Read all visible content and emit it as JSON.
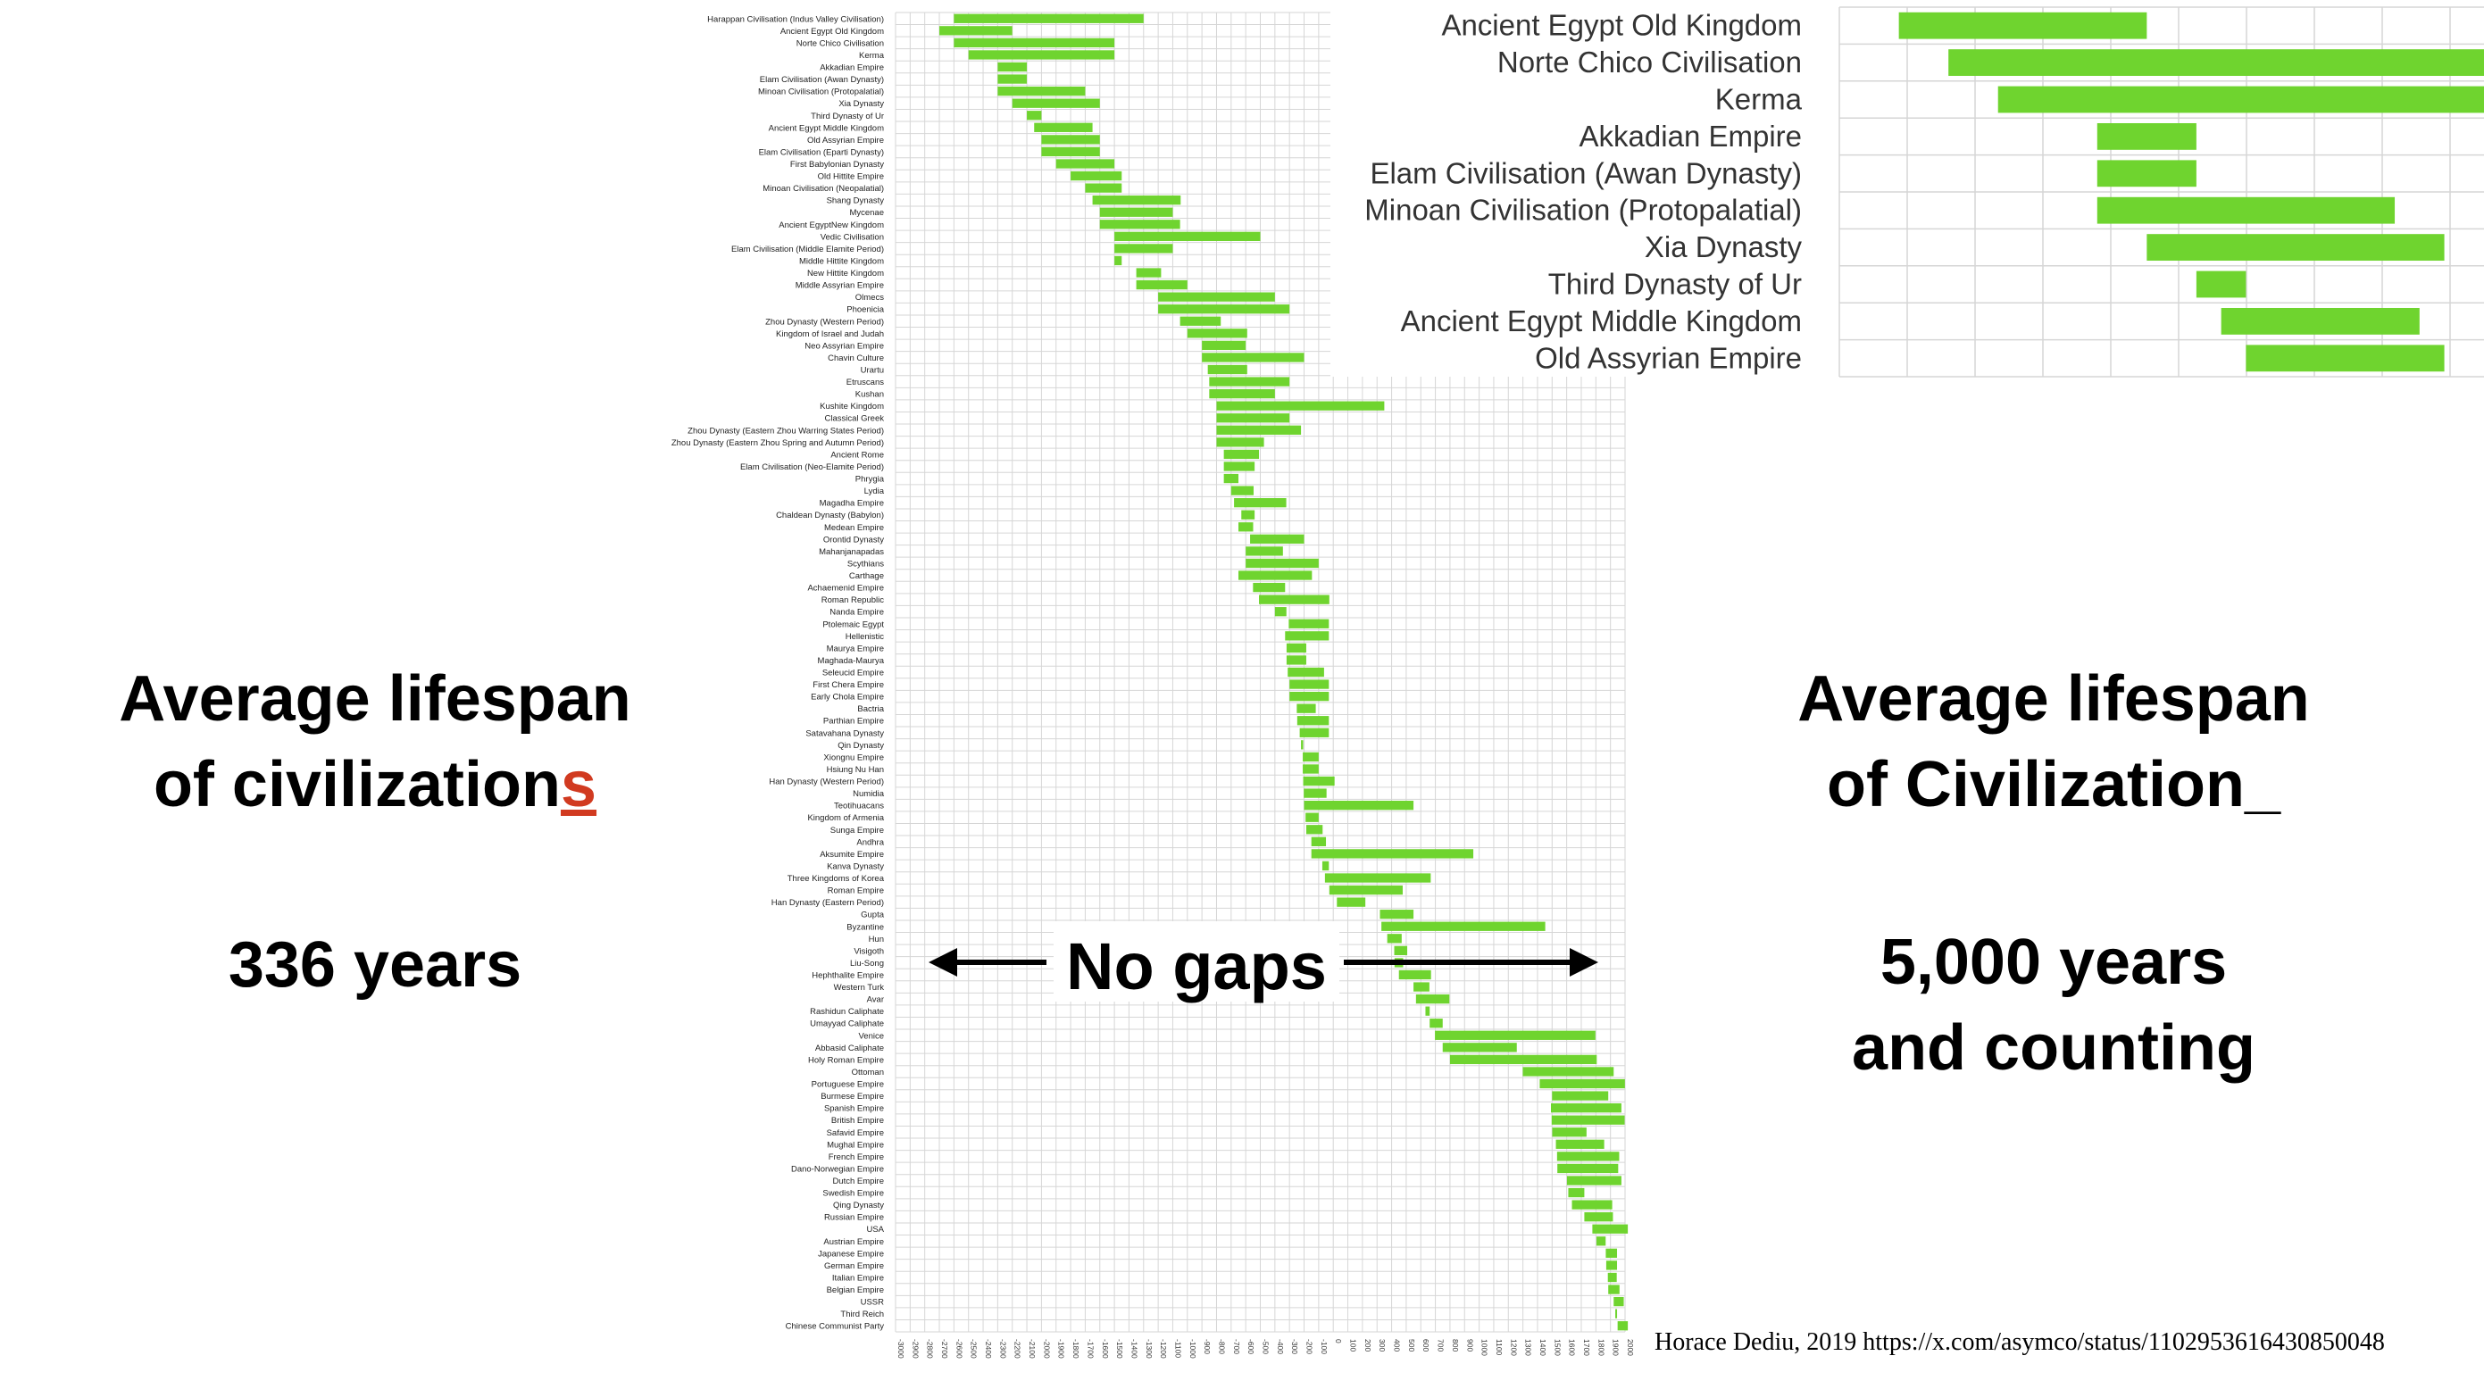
{
  "left_panel": {
    "heading_line1": "Average lifespan",
    "heading_line2_prefix": "of civilization",
    "heading_line2_emphasis": "s",
    "value": "336 years"
  },
  "right_panel": {
    "heading_line1": "Average lifespan",
    "heading_line2": "of Civilization_",
    "value_line1": "5,000 years",
    "value_line2": "and counting"
  },
  "center_label": "No gaps",
  "credit": "Horace Dediu, 2019 https://x.com/asymco/status/1102953616430850048",
  "colors": {
    "bar": "#6fd42f",
    "grid": "#d6d6d6",
    "emphasis": "#d13a20"
  },
  "chart_data": [
    {
      "type": "bar",
      "orientation": "horizontal-range",
      "xlim": [
        -3000,
        2000
      ],
      "x_tick_labels": [
        "-3000",
        "-2900",
        "-2800",
        "-2700",
        "-2600",
        "-2500",
        "-2400",
        "-2300",
        "-2200",
        "-2100",
        "-2000",
        "-1900",
        "-1800",
        "-1700",
        "-1600",
        "-1500",
        "-1400",
        "-1300",
        "-1200",
        "-1100",
        "-1000",
        "-900",
        "-800",
        "-700",
        "-600",
        "-500",
        "-400",
        "-300",
        "-200",
        "-100",
        "0",
        "100",
        "200",
        "300",
        "400",
        "500",
        "600",
        "700",
        "800",
        "900",
        "1000",
        "1100",
        "1200",
        "1300",
        "1400",
        "1500",
        "1600",
        "1700",
        "1800",
        "1900",
        "2000"
      ],
      "grid": true,
      "categories": [
        "Harappan Civilisation (Indus Valley Civilisation)",
        "Ancient Egypt Old Kingdom",
        "Norte Chico Civilisation",
        "Kerma",
        "Akkadian Empire",
        "Elam Civilisation (Awan Dynasty)",
        "Minoan Civilisation (Protopalatial)",
        "Xia Dynasty",
        "Third Dynasty of Ur",
        "Ancient Egypt Middle Kingdom",
        "Old Assyrian Empire",
        "Elam Civilisation (Eparti Dynasty)",
        "First Babylonian Dynasty",
        "Old Hittite Empire",
        "Minoan Civilisation (Neopalatial)",
        "Shang Dynasty",
        "Mycenae",
        "Ancient EgyptNew Kingdom",
        "Vedic Civilisation",
        "Elam Civilisation (Middle Elamite Period)",
        "Middle Hittite Kingdom",
        "New Hittite Kingdom",
        "Middle Assyrian Empire",
        "Olmecs",
        "Phoenicia",
        "Zhou Dynasty (Western Period)",
        "Kingdom of Israel and Judah",
        "Neo Assyrian Empire",
        "Chavin Culture",
        "Urartu",
        "Etruscans",
        "Kushan",
        "Kushite Kingdom",
        "Classical Greek",
        "Zhou Dynasty (Eastern Zhou Warring States Period)",
        "Zhou Dynasty (Eastern Zhou Spring and Autumn Period)",
        "Ancient Rome",
        "Elam Civilisation (Neo-Elamite Period)",
        "Phrygia",
        "Lydia",
        "Magadha Empire",
        "Chaldean Dynasty (Babylon)",
        "Medean Empire",
        "Orontid Dynasty",
        "Mahanjanapadas",
        "Scythians",
        "Carthage",
        "Achaemenid Empire",
        "Roman Republic",
        "Nanda Empire",
        "Ptolemaic Egypt",
        "Hellenistic",
        "Maurya Empire",
        "Maghada-Maurya",
        "Seleucid Empire",
        "First Chera Empire",
        "Early Chola Empire",
        "Bactria",
        "Parthian Empire",
        "Satavahana Dynasty",
        "Qin Dynasty",
        "Xiongnu Empire",
        "Hsiung Nu Han",
        "Han Dynasty (Western Period)",
        "Numidia",
        "Teotihuacans",
        "Kingdom of Armenia",
        "Sunga Empire",
        "Andhra",
        "Aksumite Empire",
        "Kanva Dynasty",
        "Three Kingdoms of Korea",
        "Roman Empire",
        "Han Dynasty (Eastern Period)",
        "Gupta",
        "Byzantine",
        "Hun",
        "Visigoth",
        "Liu-Song",
        "Hephthalite Empire",
        "Western Turk",
        "Avar",
        "Rashidun Caliphate",
        "Umayyad Caliphate",
        "Venice",
        "Abbasid Caliphate",
        "Holy Roman Empire",
        "Ottoman",
        "Portuguese Empire",
        "Burmese Empire",
        "Spanish Empire",
        "British Empire",
        "Safavid Empire",
        "Mughal Empire",
        "French Empire",
        "Dano-Norwegian Empire",
        "Dutch Empire",
        "Swedish Empire",
        "Qing Dynasty",
        "Russian Empire",
        "USA",
        "Austrian Empire",
        "Japanese Empire",
        "German Empire",
        "Italian Empire",
        "Belgian Empire",
        "USSR",
        "Third Reich",
        "Chinese Communist Party"
      ],
      "series": [
        {
          "starts": [
            -2600,
            -2700,
            -2600,
            -2500,
            -2300,
            -2300,
            -2300,
            -2200,
            -2100,
            -2050,
            -2000,
            -2000,
            -1900,
            -1800,
            -1700,
            -1650,
            -1600,
            -1600,
            -1500,
            -1500,
            -1500,
            -1350,
            -1350,
            -1200,
            -1200,
            -1050,
            -1000,
            -900,
            -900,
            -860,
            -850,
            -850,
            -800,
            -800,
            -800,
            -800,
            -750,
            -750,
            -750,
            -700,
            -680,
            -630,
            -650,
            -570,
            -600,
            -600,
            -650,
            -550,
            -509,
            -400,
            -305,
            -330,
            -320,
            -320,
            -312,
            -300,
            -300,
            -250,
            -247,
            -230,
            -221,
            -209,
            -209,
            -206,
            -202,
            -200,
            -190,
            -185,
            -150,
            -150,
            -75,
            -57,
            -27,
            25,
            320,
            330,
            370,
            418,
            420,
            450,
            550,
            567,
            632,
            661,
            697,
            750,
            800,
            1299,
            1415,
            1500,
            1492,
            1497,
            1501,
            1526,
            1534,
            1536,
            1602,
            1611,
            1636,
            1721,
            1776,
            1804,
            1868,
            1871,
            1882,
            1885,
            1922,
            1933,
            1949
          ],
          "ends": [
            -1300,
            -2200,
            -1500,
            -1500,
            -2100,
            -2100,
            -1700,
            -1600,
            -2000,
            -1650,
            -1600,
            -1600,
            -1500,
            -1450,
            -1450,
            -1046,
            -1100,
            -1050,
            -500,
            -1100,
            -1450,
            -1180,
            -1000,
            -400,
            -300,
            -771,
            -590,
            -600,
            -200,
            -590,
            -300,
            -400,
            350,
            -300,
            -221,
            -475,
            -509,
            -539,
            -650,
            -546,
            -322,
            -539,
            -549,
            -200,
            -345,
            -100,
            -146,
            -330,
            -27,
            -321,
            -30,
            -30,
            -185,
            -185,
            -63,
            -30,
            -30,
            -120,
            -30,
            -30,
            -206,
            -100,
            -100,
            9,
            -46,
            550,
            -100,
            -73,
            -50,
            960,
            -30,
            668,
            476,
            220,
            550,
            1453,
            469,
            507,
            479,
            670,
            659,
            796,
            661,
            750,
            1797,
            1258,
            1806,
            1922,
            1999,
            1885,
            1975,
            1997,
            1736,
            1857,
            1960,
            1953,
            1975,
            1721,
            1912,
            1917,
            2019,
            1867,
            1945,
            1945,
            1943,
            1962,
            1991,
            1945,
            2019
          ]
        }
      ]
    },
    {
      "type": "bar",
      "orientation": "horizontal-range",
      "note_source": "zoomed inset",
      "categories": [
        "Ancient Egypt Old Kingdom",
        "Norte Chico Civilisation",
        "Kerma",
        "Akkadian Empire",
        "Elam Civilisation (Awan Dynasty)",
        "Minoan Civilisation (Protopalatial)",
        "Xia Dynasty",
        "Third Dynasty of Ur",
        "Ancient Egypt Middle Kingdom",
        "Old Assyrian Empire"
      ],
      "grid": true,
      "series": [
        {
          "starts": [
            -2700,
            -2600,
            -2500,
            -2300,
            -2300,
            -2300,
            -2200,
            -2100,
            -2050,
            -2000
          ],
          "ends": [
            -2200,
            -1500,
            -1500,
            -2100,
            -2100,
            -1700,
            -1600,
            -2000,
            -1650,
            -1600
          ]
        }
      ]
    }
  ]
}
